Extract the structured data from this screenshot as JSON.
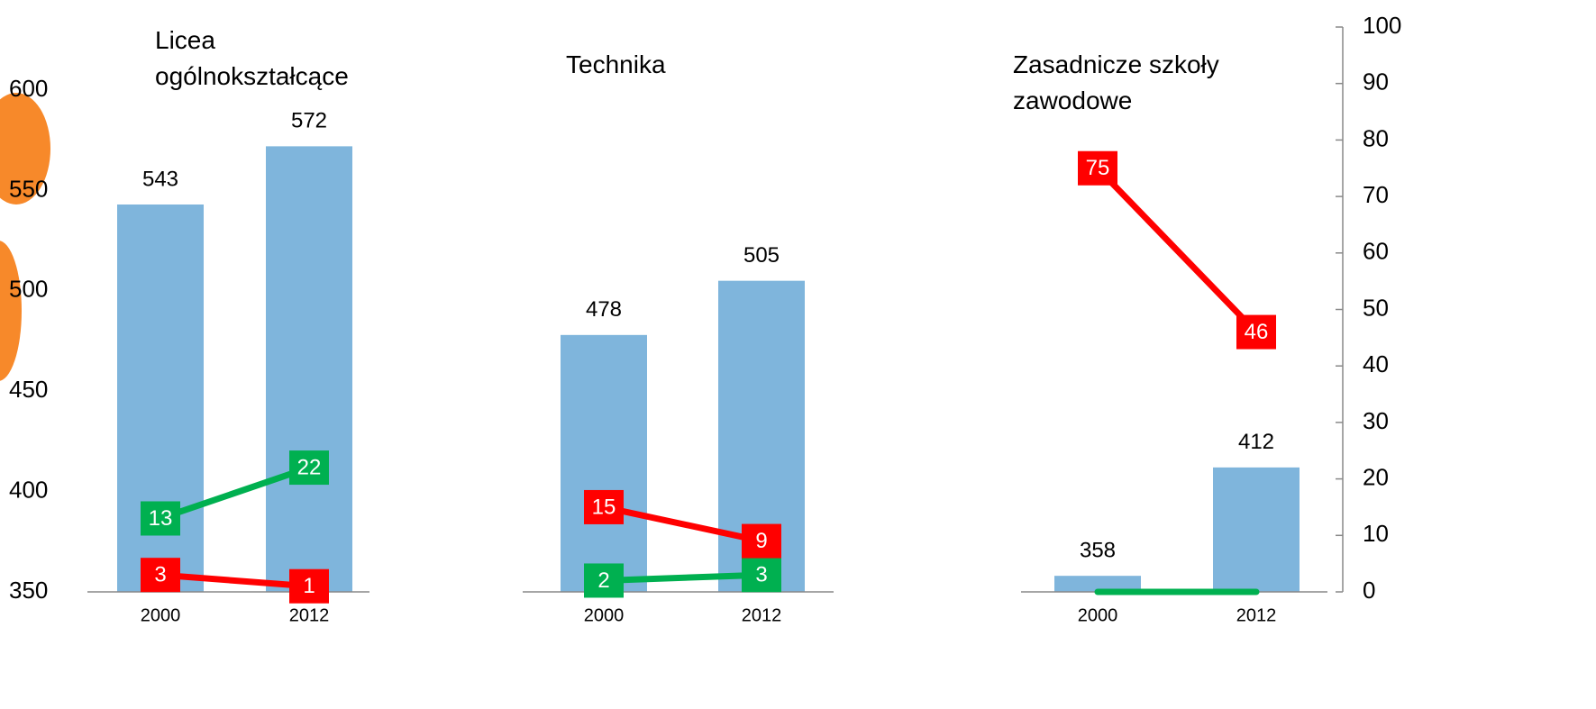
{
  "chart_data": [
    {
      "type": "bar",
      "title": "Licea ogólnokształcące",
      "categories": [
        "2000",
        "2012"
      ],
      "series": [
        {
          "color": "#7fb5dc",
          "values": [
            543,
            572
          ]
        },
        {
          "color": "#00b050",
          "axis": "y2",
          "values": [
            13,
            22
          ]
        },
        {
          "color": "#ff0000",
          "axis": "y2",
          "values": [
            3,
            1
          ]
        }
      ],
      "ylim": [
        350,
        600
      ],
      "yticks": [
        350,
        400,
        450,
        500,
        550,
        600
      ],
      "y2lim": [
        0,
        100
      ]
    },
    {
      "type": "bar",
      "title": "Technika",
      "categories": [
        "2000",
        "2012"
      ],
      "series": [
        {
          "color": "#7fb5dc",
          "values": [
            478,
            505
          ]
        },
        {
          "color": "#00b050",
          "axis": "y2",
          "values": [
            2,
            3
          ]
        },
        {
          "color": "#ff0000",
          "axis": "y2",
          "values": [
            15,
            9
          ]
        }
      ],
      "ylim": [
        350,
        600
      ],
      "y2lim": [
        0,
        100
      ]
    },
    {
      "type": "bar",
      "title": "Zasadnicze szkoły zawodowe",
      "categories": [
        "2000",
        "2012"
      ],
      "series": [
        {
          "color": "#7fb5dc",
          "values": [
            358,
            412
          ]
        },
        {
          "color": "#00b050",
          "axis": "y2",
          "values": [
            0,
            0
          ],
          "labels": false
        },
        {
          "color": "#ff0000",
          "axis": "y2",
          "values": [
            75,
            46
          ]
        }
      ],
      "ylim": [
        350,
        600
      ],
      "y2lim": [
        0,
        100
      ],
      "y2ticks": [
        0,
        10,
        20,
        30,
        40,
        50,
        60,
        70,
        80,
        90,
        100
      ]
    }
  ]
}
